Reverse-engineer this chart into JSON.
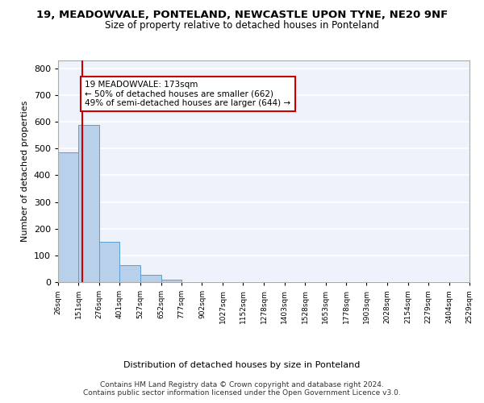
{
  "title1": "19, MEADOWVALE, PONTELAND, NEWCASTLE UPON TYNE, NE20 9NF",
  "title2": "Size of property relative to detached houses in Ponteland",
  "xlabel": "Distribution of detached houses by size in Ponteland",
  "ylabel": "Number of detached properties",
  "bin_edges": [
    26,
    151,
    276,
    401,
    527,
    652,
    777,
    902,
    1027,
    1152,
    1278,
    1403,
    1528,
    1653,
    1778,
    1903,
    2028,
    2154,
    2279,
    2404,
    2529
  ],
  "bar_heights": [
    485,
    590,
    150,
    63,
    28,
    10,
    0,
    0,
    0,
    0,
    0,
    0,
    0,
    0,
    0,
    0,
    0,
    0,
    0,
    0
  ],
  "bar_color": "#b8d0ea",
  "bar_edge_color": "#5a9fd4",
  "ylim": [
    0,
    830
  ],
  "xlim": [
    26,
    2529
  ],
  "property_size": 173,
  "red_line_color": "#cc0000",
  "annotation_text": "19 MEADOWVALE: 173sqm\n← 50% of detached houses are smaller (662)\n49% of semi-detached houses are larger (644) →",
  "annotation_box_color": "#ffffff",
  "annotation_border_color": "#cc0000",
  "footer_text": "Contains HM Land Registry data © Crown copyright and database right 2024.\nContains public sector information licensed under the Open Government Licence v3.0.",
  "background_color": "#eef2fb",
  "grid_color": "#ffffff",
  "yticks": [
    0,
    100,
    200,
    300,
    400,
    500,
    600,
    700,
    800
  ],
  "tick_labels": [
    "26sqm",
    "151sqm",
    "276sqm",
    "401sqm",
    "527sqm",
    "652sqm",
    "777sqm",
    "902sqm",
    "1027sqm",
    "1152sqm",
    "1278sqm",
    "1403sqm",
    "1528sqm",
    "1653sqm",
    "1778sqm",
    "1903sqm",
    "2028sqm",
    "2154sqm",
    "2279sqm",
    "2404sqm",
    "2529sqm"
  ]
}
